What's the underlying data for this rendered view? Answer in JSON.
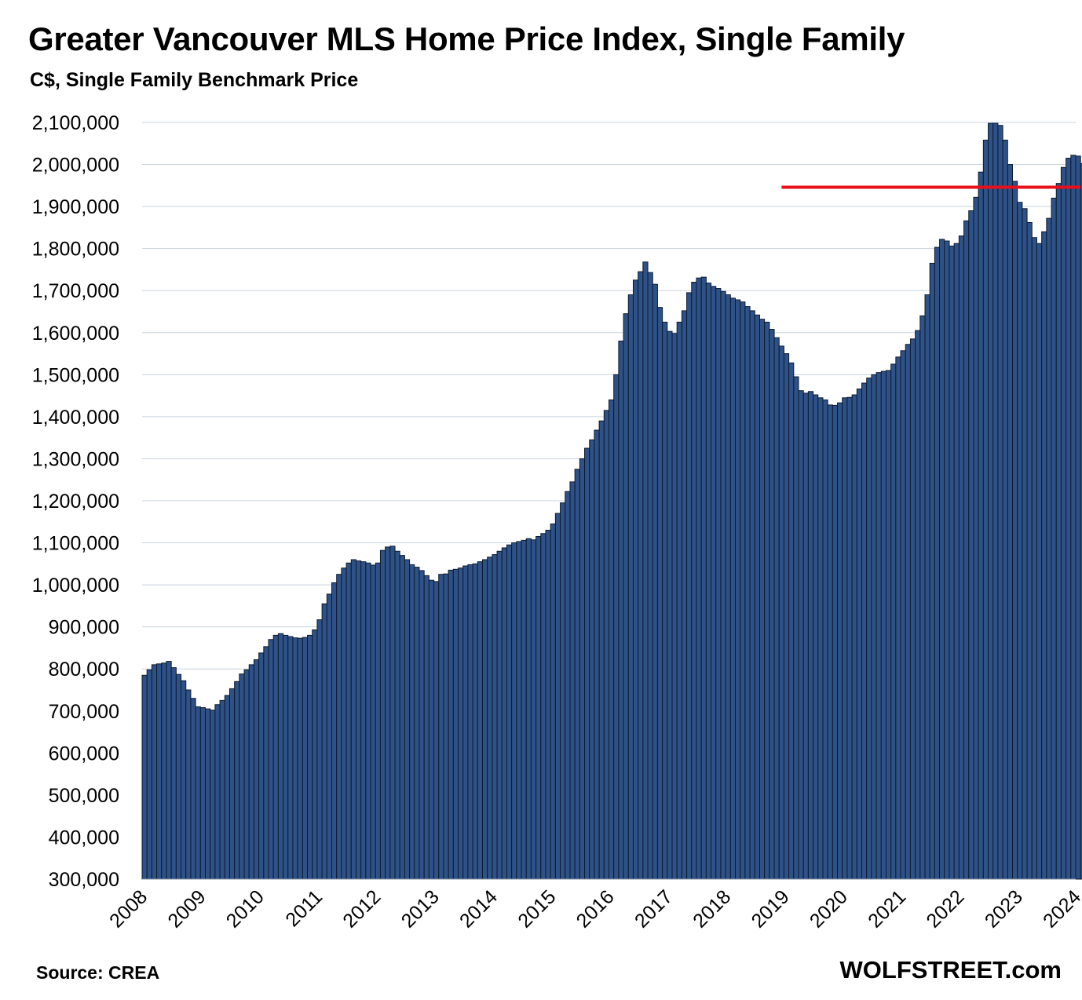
{
  "chart_data": {
    "type": "bar",
    "title": "Greater Vancouver MLS Home Price Index, Single Family",
    "subtitle": "C$, Single Family Benchmark Price",
    "source": "Source: CREA",
    "brand": "WOLFSTREET.com",
    "ylim": [
      300000,
      2100000
    ],
    "yticks": [
      "2,100,000",
      "2,000,000",
      "1,900,000",
      "1,800,000",
      "1,700,000",
      "1,600,000",
      "1,500,000",
      "1,400,000",
      "1,300,000",
      "1,200,000",
      "1,100,000",
      "1,000,000",
      "900,000",
      "800,000",
      "700,000",
      "600,000",
      "500,000",
      "400,000",
      "300,000"
    ],
    "ytick_values": [
      2100000,
      2000000,
      1900000,
      1800000,
      1700000,
      1600000,
      1500000,
      1400000,
      1300000,
      1200000,
      1100000,
      1000000,
      900000,
      800000,
      700000,
      600000,
      500000,
      400000,
      300000
    ],
    "xticks": [
      "2008",
      "2009",
      "2010",
      "2011",
      "2012",
      "2013",
      "2014",
      "2015",
      "2016",
      "2017",
      "2018",
      "2019",
      "2020",
      "2021",
      "2022",
      "2023",
      "2024"
    ],
    "grid": true,
    "bar_color": "#2E5288",
    "bar_edge_color": "#0d1b2e",
    "reference_line": {
      "value": 1946000,
      "from_year": 2019,
      "color": "#e8101a"
    },
    "start_month": "2008-01",
    "values": [
      785000,
      798000,
      810000,
      812000,
      814000,
      818000,
      803000,
      787000,
      772000,
      750000,
      730000,
      710000,
      708000,
      705000,
      702000,
      715000,
      725000,
      737000,
      753000,
      770000,
      788000,
      798000,
      810000,
      822000,
      838000,
      853000,
      870000,
      880000,
      884000,
      880000,
      877000,
      874000,
      873000,
      875000,
      880000,
      893000,
      917000,
      955000,
      978000,
      1005000,
      1025000,
      1040000,
      1052000,
      1060000,
      1057000,
      1055000,
      1052000,
      1047000,
      1052000,
      1082000,
      1090000,
      1092000,
      1080000,
      1070000,
      1060000,
      1048000,
      1042000,
      1034000,
      1022000,
      1011000,
      1008000,
      1025000,
      1026000,
      1035000,
      1037000,
      1040000,
      1045000,
      1048000,
      1050000,
      1055000,
      1060000,
      1066000,
      1072000,
      1080000,
      1088000,
      1095000,
      1100000,
      1103000,
      1106000,
      1110000,
      1107000,
      1115000,
      1122000,
      1130000,
      1145000,
      1170000,
      1195000,
      1222000,
      1245000,
      1275000,
      1300000,
      1325000,
      1345000,
      1368000,
      1390000,
      1415000,
      1440000,
      1500000,
      1580000,
      1645000,
      1690000,
      1725000,
      1745000,
      1768000,
      1743000,
      1715000,
      1660000,
      1625000,
      1603000,
      1598000,
      1625000,
      1652000,
      1695000,
      1720000,
      1730000,
      1732000,
      1718000,
      1710000,
      1705000,
      1698000,
      1690000,
      1682000,
      1678000,
      1673000,
      1662000,
      1652000,
      1642000,
      1632000,
      1625000,
      1608000,
      1588000,
      1568000,
      1550000,
      1528000,
      1495000,
      1462000,
      1456000,
      1460000,
      1452000,
      1445000,
      1440000,
      1428000,
      1427000,
      1433000,
      1445000,
      1446000,
      1452000,
      1466000,
      1480000,
      1492000,
      1500000,
      1505000,
      1508000,
      1510000,
      1525000,
      1542000,
      1557000,
      1572000,
      1585000,
      1605000,
      1640000,
      1690000,
      1765000,
      1803000,
      1822000,
      1818000,
      1806000,
      1812000,
      1830000,
      1866000,
      1890000,
      1922000,
      1982000,
      2058000,
      2098000,
      2098000,
      2093000,
      2058000,
      2000000,
      1960000,
      1910000,
      1895000,
      1862000,
      1826000,
      1812000,
      1840000,
      1872000,
      1920000,
      1955000,
      1993000,
      2015000,
      2022000,
      2020000,
      2002000,
      1985000,
      1965000,
      1945000
    ]
  }
}
